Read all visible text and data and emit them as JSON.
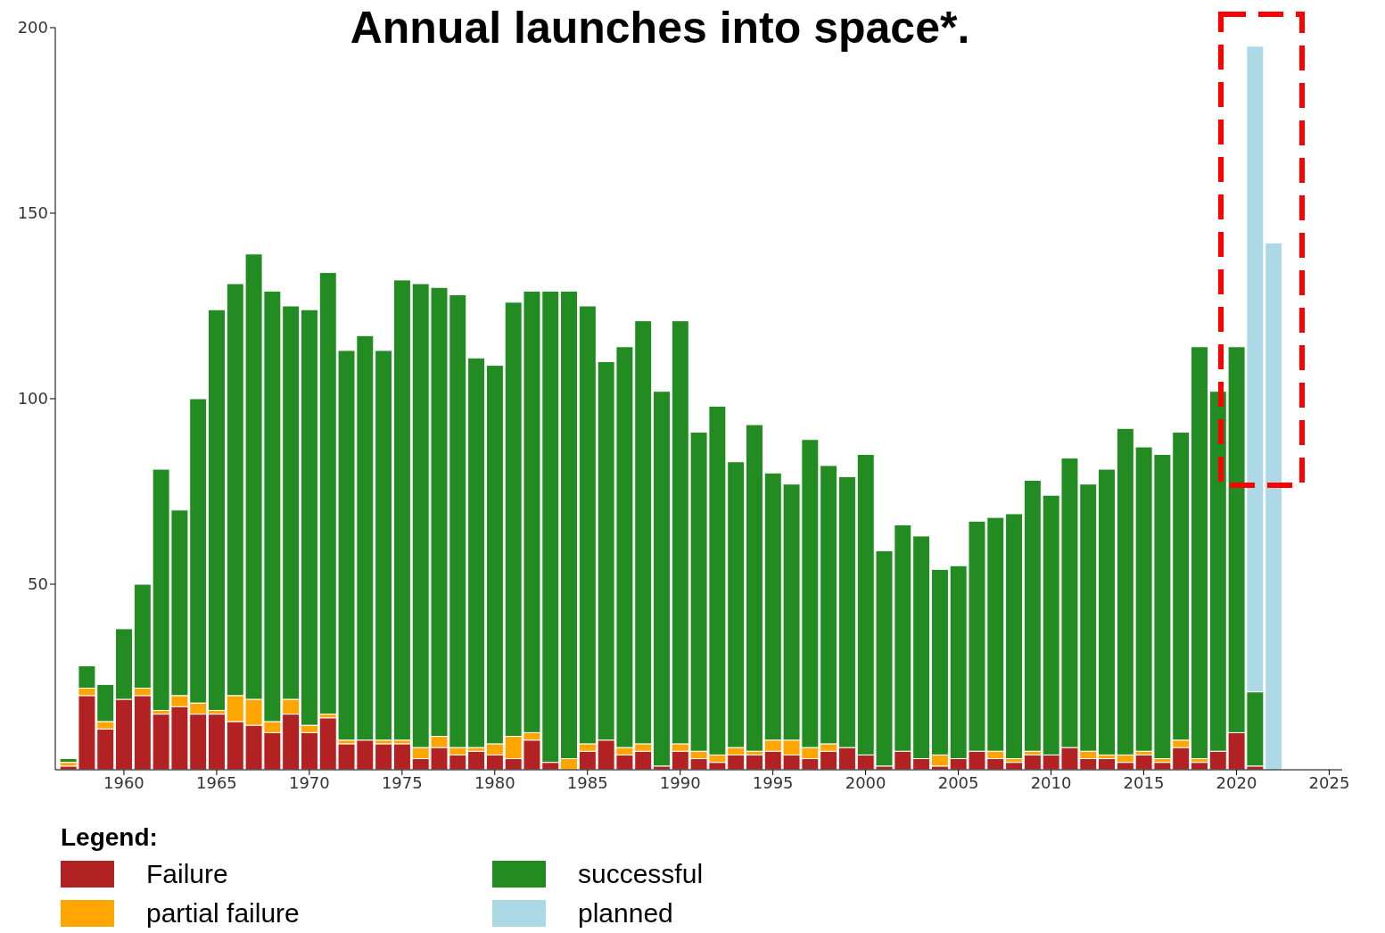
{
  "chart_data": {
    "type": "bar",
    "title": "Annual launches into space*.",
    "legend_title": "Legend:",
    "stacked": true,
    "legend": "bottom",
    "x": [
      1957,
      1958,
      1959,
      1960,
      1961,
      1962,
      1963,
      1964,
      1965,
      1966,
      1967,
      1968,
      1969,
      1970,
      1971,
      1972,
      1973,
      1974,
      1975,
      1976,
      1977,
      1978,
      1979,
      1980,
      1981,
      1982,
      1983,
      1984,
      1985,
      1986,
      1987,
      1988,
      1989,
      1990,
      1991,
      1992,
      1993,
      1994,
      1995,
      1996,
      1997,
      1998,
      1999,
      2000,
      2001,
      2002,
      2003,
      2004,
      2005,
      2006,
      2007,
      2008,
      2009,
      2010,
      2011,
      2012,
      2013,
      2014,
      2015,
      2016,
      2017,
      2018,
      2019,
      2020,
      2021,
      2022
    ],
    "xlim": [
      1956.3,
      2025.7
    ],
    "xticks": [
      1960,
      1965,
      1970,
      1975,
      1980,
      1985,
      1990,
      1995,
      2000,
      2005,
      2010,
      2015,
      2020,
      2025
    ],
    "ylim": [
      0,
      200
    ],
    "yticks": [
      50,
      100,
      150,
      200
    ],
    "series": [
      {
        "name": "Failure",
        "color": "#b22222",
        "values": [
          1,
          20,
          11,
          19,
          20,
          15,
          17,
          15,
          15,
          13,
          12,
          10,
          15,
          10,
          14,
          7,
          8,
          7,
          7,
          3,
          6,
          4,
          5,
          4,
          3,
          8,
          2,
          0,
          5,
          8,
          4,
          5,
          1,
          5,
          3,
          2,
          4,
          4,
          5,
          4,
          3,
          5,
          6,
          4,
          1,
          5,
          3,
          1,
          3,
          5,
          3,
          2,
          4,
          4,
          6,
          3,
          3,
          2,
          4,
          2,
          6,
          2,
          5,
          10,
          1,
          null
        ]
      },
      {
        "name": "partial failure",
        "color": "#ffa500",
        "values": [
          1,
          2,
          2,
          0,
          2,
          1,
          3,
          3,
          1,
          7,
          7,
          3,
          4,
          2,
          1,
          1,
          0,
          1,
          1,
          3,
          3,
          2,
          1,
          3,
          6,
          2,
          0,
          3,
          2,
          0,
          2,
          2,
          0,
          2,
          2,
          2,
          2,
          1,
          3,
          4,
          3,
          2,
          0,
          0,
          0,
          0,
          0,
          3,
          0,
          0,
          2,
          1,
          1,
          0,
          0,
          2,
          1,
          2,
          1,
          1,
          2,
          1,
          0,
          0,
          0,
          null
        ]
      },
      {
        "name": "successful",
        "color": "#228b22",
        "values": [
          1,
          6,
          10,
          19,
          28,
          65,
          50,
          82,
          108,
          111,
          120,
          116,
          106,
          112,
          119,
          105,
          109,
          105,
          124,
          125,
          121,
          122,
          105,
          102,
          117,
          119,
          127,
          126,
          118,
          102,
          108,
          114,
          101,
          114,
          86,
          94,
          77,
          88,
          72,
          69,
          83,
          75,
          73,
          81,
          58,
          61,
          60,
          50,
          52,
          62,
          63,
          66,
          73,
          70,
          78,
          72,
          77,
          88,
          82,
          82,
          83,
          111,
          97,
          104,
          20,
          null
        ]
      },
      {
        "name": "planned",
        "color": "#add8e6",
        "values": [
          null,
          null,
          null,
          null,
          null,
          null,
          null,
          null,
          null,
          null,
          null,
          null,
          null,
          null,
          null,
          null,
          null,
          null,
          null,
          null,
          null,
          null,
          null,
          null,
          null,
          null,
          null,
          null,
          null,
          null,
          null,
          null,
          null,
          null,
          null,
          null,
          null,
          null,
          null,
          null,
          null,
          null,
          null,
          null,
          null,
          null,
          null,
          null,
          null,
          null,
          null,
          null,
          null,
          null,
          null,
          null,
          null,
          null,
          null,
          null,
          null,
          null,
          null,
          null,
          174,
          142
        ]
      }
    ]
  }
}
